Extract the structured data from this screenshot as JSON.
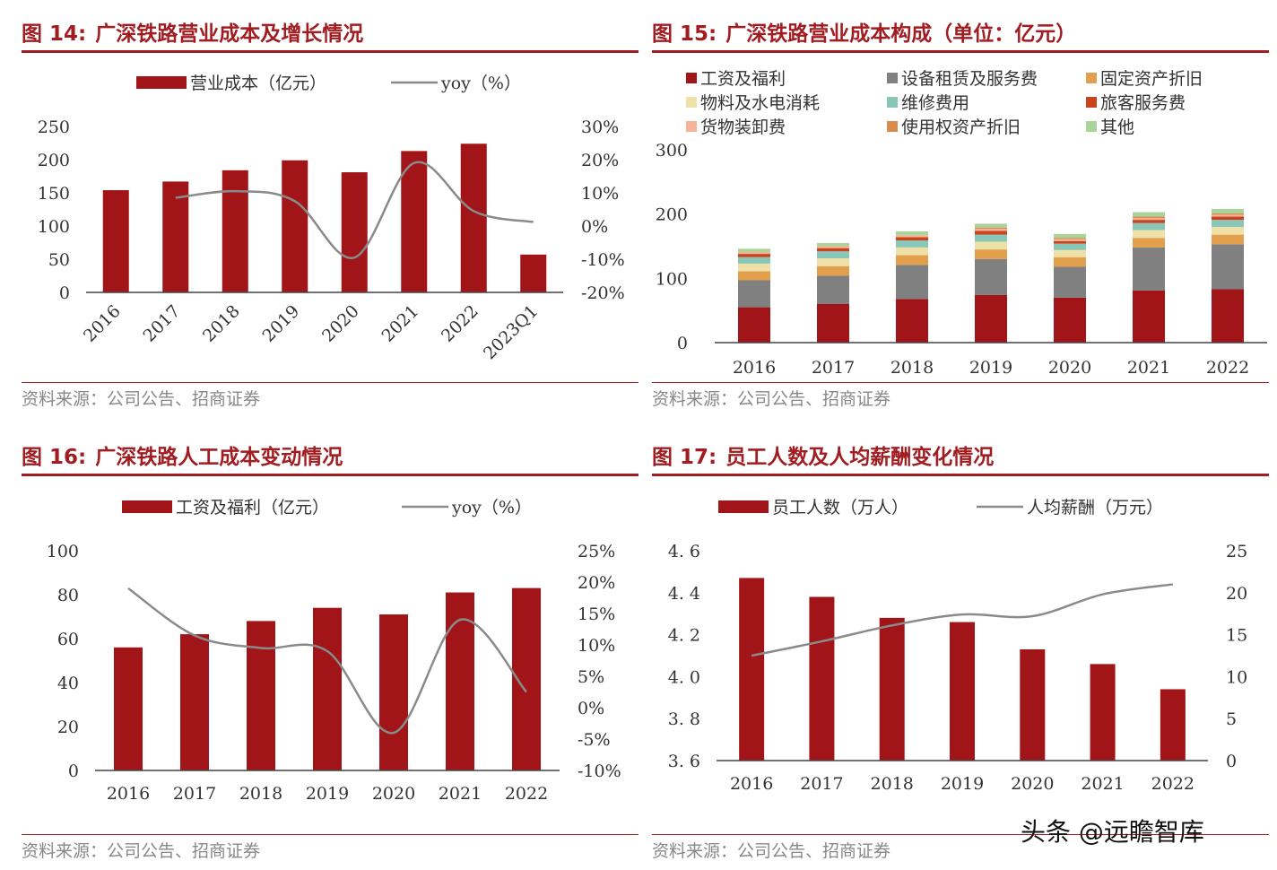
{
  "panels": [
    {
      "id": "p14",
      "fig_num": "图 14:",
      "title": "广深铁路营业成本及增长情况",
      "source": "资料来源：公司公告、招商证券"
    },
    {
      "id": "p15",
      "fig_num": "图 15:",
      "title": "广深铁路营业成本构成（单位：亿元）",
      "source": "资料来源：公司公告、招商证券"
    },
    {
      "id": "p16",
      "fig_num": "图 16:",
      "title": "广深铁路人工成本变动情况",
      "source": "资料来源：公司公告、招商证券"
    },
    {
      "id": "p17",
      "fig_num": "图 17:",
      "title": "员工人数及人均薪酬变化情况",
      "source": "资料来源：公司公告、招商证券"
    }
  ],
  "watermark": "头条 @远瞻智库",
  "colors": {
    "bar": "#a11519",
    "line": "#8a8a8a",
    "accent": "#a11d21"
  },
  "chart_data": [
    {
      "type": "bar",
      "categories": [
        "2016",
        "2017",
        "2018",
        "2019",
        "2020",
        "2021",
        "2022",
        "2023Q1"
      ],
      "series": [
        {
          "name": "营业成本（亿元）",
          "type": "bar",
          "axis": "left",
          "values": [
            154,
            167,
            184,
            199,
            181,
            213,
            224,
            57
          ]
        },
        {
          "name": "yoy（%）",
          "type": "line",
          "axis": "right",
          "values": [
            null,
            8.5,
            10.5,
            7.5,
            -9.5,
            19.0,
            4.5,
            1.2
          ]
        }
      ],
      "ylim": [
        0,
        250
      ],
      "yticks": [
        "0",
        "50",
        "100",
        "150",
        "200",
        "250"
      ],
      "y2lim": [
        -20,
        30
      ],
      "y2ticks": [
        "-20%",
        "-10%",
        "0%",
        "10%",
        "20%",
        "30%"
      ],
      "legend": [
        "营业成本（亿元）",
        "yoy（%）"
      ]
    },
    {
      "type": "bar",
      "stacked": true,
      "categories": [
        "2016",
        "2017",
        "2018",
        "2019",
        "2020",
        "2021",
        "2022"
      ],
      "series": [
        {
          "name": "工资及福利",
          "color": "#a11519",
          "values": [
            55,
            60,
            68,
            74,
            70,
            81,
            83
          ]
        },
        {
          "name": "设备租赁及服务费",
          "color": "#808080",
          "values": [
            42,
            44,
            53,
            56,
            48,
            67,
            70
          ]
        },
        {
          "name": "固定资产折旧",
          "color": "#e2a04c",
          "values": [
            14,
            15,
            15,
            15,
            15,
            15,
            15
          ]
        },
        {
          "name": "物料及水电消耗",
          "color": "#efe0a8",
          "values": [
            12,
            12,
            12,
            12,
            11,
            12,
            12
          ]
        },
        {
          "name": "维修费用",
          "color": "#88c6b8",
          "values": [
            10,
            11,
            11,
            11,
            10,
            11,
            11
          ]
        },
        {
          "name": "旅客服务费",
          "color": "#c9441c",
          "values": [
            5,
            5,
            5,
            6,
            4,
            5,
            5
          ]
        },
        {
          "name": "货物装卸费",
          "color": "#f6b39a",
          "values": [
            3,
            3,
            3,
            3,
            3,
            3,
            3
          ]
        },
        {
          "name": "使用权资产折旧",
          "color": "#d98b4e",
          "values": [
            0,
            0,
            0,
            2,
            2,
            2,
            2
          ]
        },
        {
          "name": "其他",
          "color": "#a8d49a",
          "values": [
            5,
            5,
            6,
            6,
            6,
            7,
            7
          ]
        }
      ],
      "ylim": [
        0,
        300
      ],
      "yticks": [
        "0",
        "100",
        "200",
        "300"
      ]
    },
    {
      "type": "bar",
      "categories": [
        "2016",
        "2017",
        "2018",
        "2019",
        "2020",
        "2021",
        "2022"
      ],
      "series": [
        {
          "name": "工资及福利（亿元）",
          "type": "bar",
          "axis": "left",
          "values": [
            56,
            62,
            68,
            74,
            71,
            81,
            83
          ]
        },
        {
          "name": "yoy（%）",
          "type": "line",
          "axis": "right",
          "values": [
            19.0,
            11.5,
            9.5,
            9.0,
            -4.0,
            14.0,
            2.5
          ]
        }
      ],
      "ylim": [
        0,
        100
      ],
      "yticks": [
        "0",
        "20",
        "40",
        "60",
        "80",
        "100"
      ],
      "y2lim": [
        -10,
        25
      ],
      "y2ticks": [
        "-10%",
        "-5%",
        "0%",
        "5%",
        "10%",
        "15%",
        "20%",
        "25%"
      ],
      "legend": [
        "工资及福利（亿元）",
        "yoy（%）"
      ]
    },
    {
      "type": "bar",
      "categories": [
        "2016",
        "2017",
        "2018",
        "2019",
        "2020",
        "2021",
        "2022"
      ],
      "series": [
        {
          "name": "员工人数（万人）",
          "type": "bar",
          "axis": "left",
          "values": [
            4.47,
            4.38,
            4.28,
            4.26,
            4.13,
            4.06,
            3.94
          ]
        },
        {
          "name": "人均薪酬（万元）",
          "type": "line",
          "axis": "right",
          "values": [
            12.5,
            14.2,
            16.1,
            17.4,
            17.2,
            19.8,
            21.0
          ]
        }
      ],
      "ylim": [
        3.6,
        4.6
      ],
      "yticks": [
        "3. 6",
        "3. 8",
        "4. 0",
        "4. 2",
        "4. 4",
        "4. 6"
      ],
      "y2lim": [
        0,
        25
      ],
      "y2ticks": [
        "0",
        "5",
        "10",
        "15",
        "20",
        "25"
      ],
      "legend": [
        "员工人数（万人）",
        "人均薪酬（万元）"
      ]
    }
  ]
}
